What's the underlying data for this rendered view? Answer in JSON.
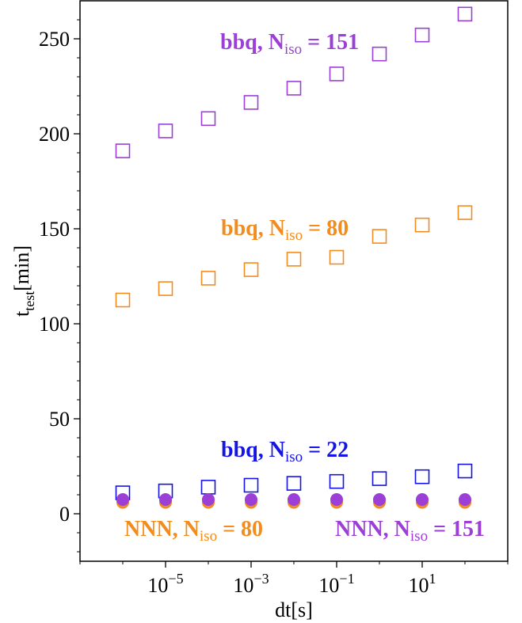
{
  "chart_data": {
    "type": "scatter",
    "xscale": "log",
    "xlabel": "dt[s]",
    "ylabel_main": "t",
    "ylabel_sub": "test",
    "ylabel_unit": "[min]",
    "xlim": [
      1e-07,
      1000
    ],
    "ylim": [
      -25,
      270
    ],
    "yticks": [
      0,
      50,
      100,
      150,
      200,
      250
    ],
    "xticks": [
      {
        "value": 1e-05,
        "base": "10",
        "exp": "−5"
      },
      {
        "value": 0.001,
        "base": "10",
        "exp": "−3"
      },
      {
        "value": 0.1,
        "base": "10",
        "exp": "−1"
      },
      {
        "value": 10,
        "base": "10",
        "exp": "1"
      }
    ],
    "x": [
      1e-06,
      1e-05,
      0.0001,
      0.001,
      0.01,
      0.1,
      1,
      10,
      100
    ],
    "series": [
      {
        "color": "#9b3fd6",
        "marker": "square-open",
        "values": [
          191,
          201.5,
          208,
          216.5,
          224,
          231.5,
          242,
          252,
          263
        ]
      },
      {
        "color": "#f28c1e",
        "marker": "square-open",
        "values": [
          112.5,
          118.5,
          124,
          128.5,
          134,
          135,
          146,
          152,
          158.5
        ]
      },
      {
        "color": "#1414e6",
        "marker": "square-open",
        "values": [
          11,
          12,
          14,
          15,
          16,
          17,
          18.5,
          19.5,
          22.5
        ]
      },
      {
        "color": "#f28c1e",
        "marker": "circle-filled",
        "values": [
          6,
          6,
          6,
          6,
          6,
          6,
          6,
          6,
          6
        ]
      },
      {
        "color": "#9b3fd6",
        "marker": "circle-filled",
        "values": [
          7.5,
          7.5,
          7.5,
          7.5,
          7.5,
          7.5,
          7.5,
          7.5,
          7.5
        ]
      }
    ],
    "annotations": [
      {
        "id": "bbq-151",
        "name": "bbq, ",
        "sym": "N",
        "sub": "iso",
        "eq": " = 151",
        "color": "#9b3fd6"
      },
      {
        "id": "bbq-80",
        "name": "bbq, ",
        "sym": "N",
        "sub": "iso",
        "eq": " = 80",
        "color": "#f28c1e"
      },
      {
        "id": "bbq-22",
        "name": "bbq, ",
        "sym": "N",
        "sub": "iso",
        "eq": " = 22",
        "color": "#1414e6"
      },
      {
        "id": "nnn-80",
        "name": "NNN, ",
        "sym": "N",
        "sub": "iso",
        "eq": " = 80",
        "color": "#f28c1e"
      },
      {
        "id": "nnn-151",
        "name": "NNN, ",
        "sym": "N",
        "sub": "iso",
        "eq": " = 151",
        "color": "#9b3fd6"
      }
    ]
  }
}
